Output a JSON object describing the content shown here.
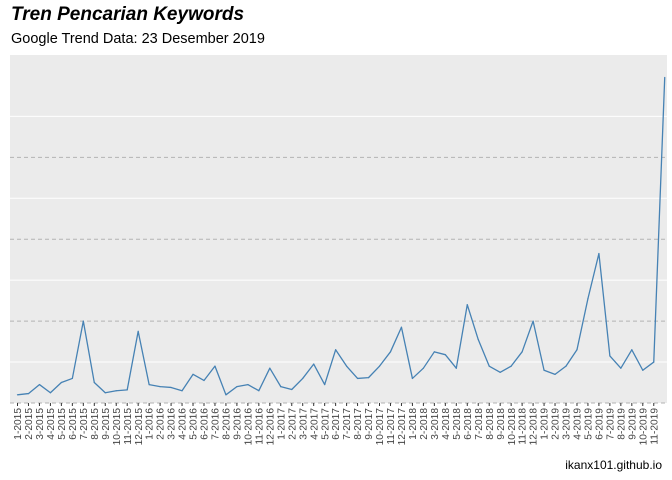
{
  "chart_data": {
    "type": "line",
    "title": "Tren Pencarian Keywords",
    "subtitle": "Google Trend Data: 23 Desember 2019",
    "caption": "ikanx101.github.io",
    "xlabel": "",
    "ylabel": "",
    "y_tick_labels_shown": false,
    "grid": true,
    "categories": [
      "1-2015",
      "2-2015",
      "3-2015",
      "4-2015",
      "5-2015",
      "6-2015",
      "7-2015",
      "8-2015",
      "9-2015",
      "10-2015",
      "11-2015",
      "12-2015",
      "1-2016",
      "2-2016",
      "3-2016",
      "4-2016",
      "5-2016",
      "6-2016",
      "7-2016",
      "8-2016",
      "9-2016",
      "10-2016",
      "11-2016",
      "12-2016",
      "1-2017",
      "2-2017",
      "3-2017",
      "4-2017",
      "5-2017",
      "6-2017",
      "7-2017",
      "8-2017",
      "9-2017",
      "10-2017",
      "11-2017",
      "12-2017",
      "1-2018",
      "2-2018",
      "3-2018",
      "4-2018",
      "5-2018",
      "6-2018",
      "7-2018",
      "8-2018",
      "9-2018",
      "10-2018",
      "11-2018",
      "12-2018",
      "1-2019",
      "2-2019",
      "3-2019",
      "4-2019",
      "5-2019",
      "6-2019",
      "7-2019",
      "8-2019",
      "9-2019",
      "10-2019",
      "11-2019",
      "12-2019"
    ],
    "x_tick_labels": [
      "1-2015",
      "2-2015",
      "3-2015",
      "4-2015",
      "5-2015",
      "6-2015",
      "7-2015",
      "8-2015",
      "9-2015",
      "10-2015",
      "11-2015",
      "12-2015",
      "1-2016",
      "2-2016",
      "3-2016",
      "4-2016",
      "5-2016",
      "6-2016",
      "7-2016",
      "8-2016",
      "9-2016",
      "10-2016",
      "11-2016",
      "12-2016",
      "1-2017",
      "2-2017",
      "3-2017",
      "4-2017",
      "5-2017",
      "6-2017",
      "7-2017",
      "8-2017",
      "9-2017",
      "10-2017",
      "11-2017",
      "12-2017",
      "1-2018",
      "2-2018",
      "3-2018",
      "4-2018",
      "5-2018",
      "6-2018",
      "7-2018",
      "8-2018",
      "9-2018",
      "10-2018",
      "11-2018",
      "12-2018",
      "1-2019",
      "2-2019",
      "3-2019",
      "4-2019",
      "5-2019",
      "6-2019",
      "7-2019",
      "8-2019",
      "9-2019",
      "10-2019",
      "11-2019"
    ],
    "values": [
      2,
      2.3,
      4.5,
      2.5,
      5,
      6,
      20,
      5,
      2.5,
      3,
      3.2,
      17.5,
      4.5,
      4,
      3.8,
      3,
      7,
      5.5,
      9,
      2,
      4,
      4.5,
      3,
      8.5,
      4,
      3.3,
      6,
      9.5,
      4.5,
      13,
      9,
      6,
      6.2,
      9,
      12.5,
      18.5,
      6,
      8.5,
      12.5,
      11.8,
      8.5,
      24,
      15.5,
      9,
      7.5,
      9,
      12.5,
      20,
      8,
      7,
      9,
      13,
      25.5,
      36.5,
      11.5,
      8.5,
      13,
      8,
      10,
      79.5
    ],
    "ylim": [
      0,
      85
    ],
    "colors": {
      "line": "#4682b4",
      "panel_background": "#ebebeb",
      "major_grid": "#b3b3b3",
      "minor_grid": "#ffffff"
    }
  }
}
